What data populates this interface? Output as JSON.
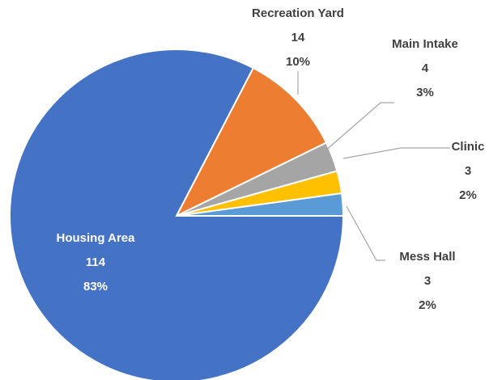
{
  "chart_data": {
    "type": "pie",
    "categories": [
      "Mess Hall",
      "Clinic",
      "Main Intake",
      "Recreation Yard",
      "Housing Area"
    ],
    "values": [
      3,
      3,
      4,
      14,
      114
    ],
    "percent_labels": [
      "2%",
      "2%",
      "3%",
      "10%",
      "83%"
    ],
    "colors": [
      "#5b9bd5",
      "#ffc000",
      "#a5a5a5",
      "#ed7d31",
      "#4472c4"
    ]
  }
}
